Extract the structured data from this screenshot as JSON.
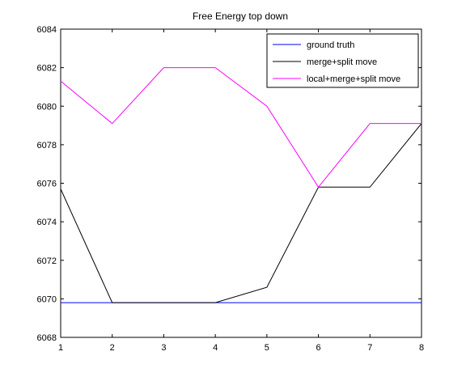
{
  "chart_data": {
    "type": "line",
    "title": "Free Energy top down",
    "xlabel": "",
    "ylabel": "",
    "x": [
      1,
      2,
      3,
      4,
      5,
      6,
      7,
      8
    ],
    "xlim": [
      1,
      8
    ],
    "ylim": [
      6068,
      6084
    ],
    "xticks": [
      1,
      2,
      3,
      4,
      5,
      6,
      7,
      8
    ],
    "yticks": [
      6068,
      6070,
      6072,
      6074,
      6076,
      6078,
      6080,
      6082,
      6084
    ],
    "grid": false,
    "legend": "top-right",
    "series": [
      {
        "name": "ground truth",
        "color": "#0000ff",
        "values": [
          6069.8,
          6069.8,
          6069.8,
          6069.8,
          6069.8,
          6069.8,
          6069.8,
          6069.8
        ]
      },
      {
        "name": "merge+split move",
        "color": "#000000",
        "values": [
          6075.7,
          6069.8,
          6069.8,
          6069.8,
          6070.6,
          6075.8,
          6075.8,
          6079.1
        ]
      },
      {
        "name": "local+merge+split move",
        "color": "#ff00ff",
        "values": [
          6081.3,
          6079.1,
          6082.0,
          6082.0,
          6080.0,
          6075.8,
          6079.1,
          6079.1
        ]
      }
    ]
  }
}
